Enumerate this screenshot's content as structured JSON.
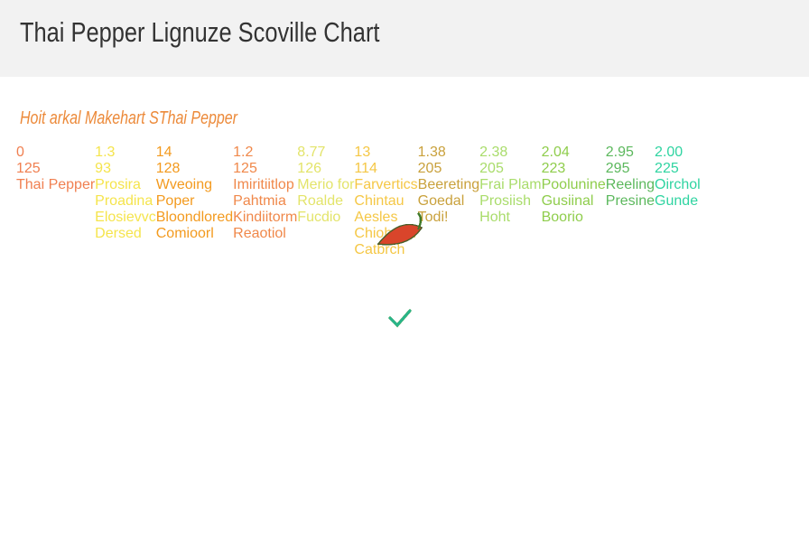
{
  "header": {
    "title": "Thai Pepper Lignuze Scoville Chart"
  },
  "subtitle": "Hoit arkal Makehart SThai Pepper",
  "columns": [
    {
      "color": "#f07f50",
      "top": "0",
      "bottom": "125",
      "label": [
        "Thai Pepper"
      ]
    },
    {
      "color": "#f5e44c",
      "top": "1.3",
      "bottom": "93",
      "label": [
        "Prosira",
        "Proadina",
        "Elosievvc",
        "Dersed"
      ]
    },
    {
      "color": "#f39a1e",
      "top": "14",
      "bottom": "128",
      "label": [
        "Wveoing",
        "Poper",
        "Bloondlored",
        "Comioorl"
      ]
    },
    {
      "color": "#f0884a",
      "top": "1.2",
      "bottom": "125",
      "label": [
        "Imiritiitlop",
        "Pahtmia",
        "Kindiitorm",
        "Reaotiol"
      ]
    },
    {
      "color": "#e3e46a",
      "top": "8.77",
      "bottom": "126",
      "label": [
        "Merio for",
        "Roalde",
        "Fucdio"
      ]
    },
    {
      "color": "#f5c745",
      "top": "13",
      "bottom": "114",
      "label": [
        "Farvertics",
        "Chintau",
        "Aesles",
        "Chiohonn",
        "Catbrch"
      ]
    },
    {
      "color": "#c9a13c",
      "top": "1.38",
      "bottom": "205",
      "label": [
        "Beereting",
        "Goedal",
        "Todi!"
      ]
    },
    {
      "color": "#a9dc6b",
      "top": "2.38",
      "bottom": "205",
      "label": [
        "Frai Plam",
        "Prosiish",
        "Hoht"
      ]
    },
    {
      "color": "#8fcd4c",
      "top": "2.04",
      "bottom": "223",
      "label": [
        "Poolunine",
        "Gusiinal",
        "Boorio"
      ]
    },
    {
      "color": "#5cb85d",
      "top": "2.95",
      "bottom": "295",
      "label": [
        "Reeling",
        "Presine"
      ]
    },
    {
      "color": "#2fd4a1",
      "top": "2.00",
      "bottom": "225",
      "label": [
        "Oirchol",
        "Gunde"
      ]
    }
  ]
}
